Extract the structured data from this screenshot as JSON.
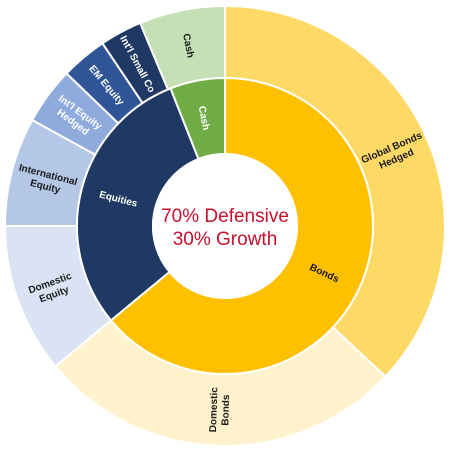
{
  "chart_data": {
    "type": "pie",
    "title": "",
    "center_text": [
      "70% Defensive",
      "30% Growth"
    ],
    "center_color": "#c8102e",
    "inner_ring": [
      {
        "name": "Bonds",
        "value": 64,
        "color": "#ffc000",
        "text_color": "#1a1a1a"
      },
      {
        "name": "Equities",
        "value": 30,
        "color": "#1f3864",
        "text_color": "#ffffff"
      },
      {
        "name": "Cash",
        "value": 6,
        "color": "#70ad47",
        "text_color": "#ffffff"
      }
    ],
    "outer_ring": [
      {
        "name": "Global Bonds Hedged",
        "lines": [
          "Global Bonds",
          "Hedged"
        ],
        "value": 37,
        "color": "#ffd966",
        "text_color": "#1a1a1a"
      },
      {
        "name": "Domestic Bonds",
        "lines": [
          "Domestic",
          "Bonds"
        ],
        "value": 27,
        "color": "#fff2cc",
        "text_color": "#1a1a1a"
      },
      {
        "name": "Domestic Equity",
        "lines": [
          "Domestic",
          "Equity"
        ],
        "value": 11,
        "color": "#dae3f3",
        "text_color": "#1a1a1a"
      },
      {
        "name": "International Equity",
        "lines": [
          "International",
          "Equity"
        ],
        "value": 8,
        "color": "#b4c7e7",
        "text_color": "#1a1a1a"
      },
      {
        "name": "Int'l Equity Hedged",
        "lines": [
          "Int'l Equity",
          "Hedged"
        ],
        "value": 4.2,
        "color": "#8faadc",
        "text_color": "#ffffff"
      },
      {
        "name": "EM Equity",
        "lines": [
          "EM Equity"
        ],
        "value": 3.4,
        "color": "#2f5597",
        "text_color": "#ffffff"
      },
      {
        "name": "Int'l Small Co",
        "lines": [
          "Int'l Small Co"
        ],
        "value": 3.1,
        "color": "#1f3864",
        "text_color": "#ffffff"
      },
      {
        "name": "Cash",
        "lines": [
          "Cash"
        ],
        "value": 6.3,
        "color": "#c5e0b4",
        "text_color": "#1a1a1a"
      }
    ]
  }
}
